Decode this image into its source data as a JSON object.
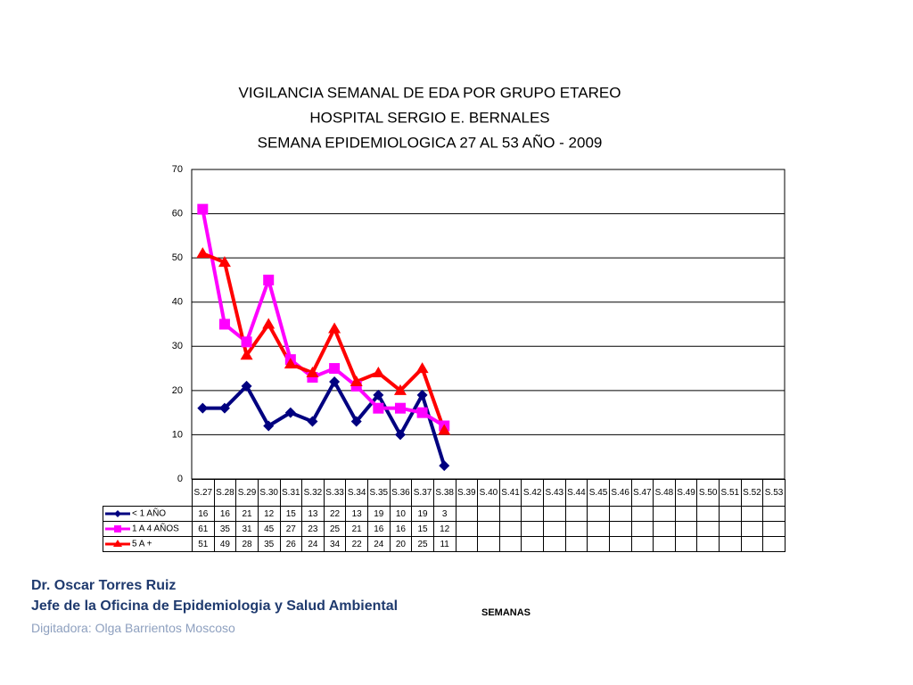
{
  "chart_data": {
    "type": "line",
    "title": [
      "VIGILANCIA SEMANAL DE EDA POR GRUPO ETAREO",
      "HOSPITAL SERGIO E. BERNALES",
      "SEMANA EPIDEMIOLOGICA 27 AL 53 AÑO - 2009"
    ],
    "x_label": "SEMANAS",
    "categories": [
      "S.27",
      "S.28",
      "S.29",
      "S.30",
      "S.31",
      "S.32",
      "S.33",
      "S.34",
      "S.35",
      "S.36",
      "S.37",
      "S.38",
      "S.39",
      "S.40",
      "S.41",
      "S.42",
      "S.43",
      "S.44",
      "S.45",
      "S.46",
      "S.47",
      "S.48",
      "S.49",
      "S.50",
      "S.51",
      "S.52",
      "S.53"
    ],
    "series": [
      {
        "name": "< 1 AÑO",
        "color": "#000080",
        "marker": "diamond",
        "values": [
          16,
          16,
          21,
          12,
          15,
          13,
          22,
          13,
          19,
          10,
          19,
          3,
          null,
          null,
          null,
          null,
          null,
          null,
          null,
          null,
          null,
          null,
          null,
          null,
          null,
          null,
          null
        ]
      },
      {
        "name": "1 A 4 AÑOS",
        "color": "#ff00ff",
        "marker": "square",
        "values": [
          61,
          35,
          31,
          45,
          27,
          23,
          25,
          21,
          16,
          16,
          15,
          12,
          null,
          null,
          null,
          null,
          null,
          null,
          null,
          null,
          null,
          null,
          null,
          null,
          null,
          null,
          null
        ]
      },
      {
        "name": "5 A +",
        "color": "#ff0000",
        "marker": "triangle",
        "values": [
          51,
          49,
          28,
          35,
          26,
          24,
          34,
          22,
          24,
          20,
          25,
          11,
          null,
          null,
          null,
          null,
          null,
          null,
          null,
          null,
          null,
          null,
          null,
          null,
          null,
          null,
          null
        ]
      }
    ],
    "ylim": [
      0,
      70
    ],
    "yticks": [
      0,
      10,
      20,
      30,
      40,
      50,
      60,
      70
    ],
    "grid": true
  },
  "footer": {
    "name": "Dr.  Oscar  Torres Ruiz",
    "position": "Jefe de la Oficina de Epidemiologia y  Salud Ambiental",
    "typist": "Digitadora: Olga Barrientos Moscoso"
  }
}
